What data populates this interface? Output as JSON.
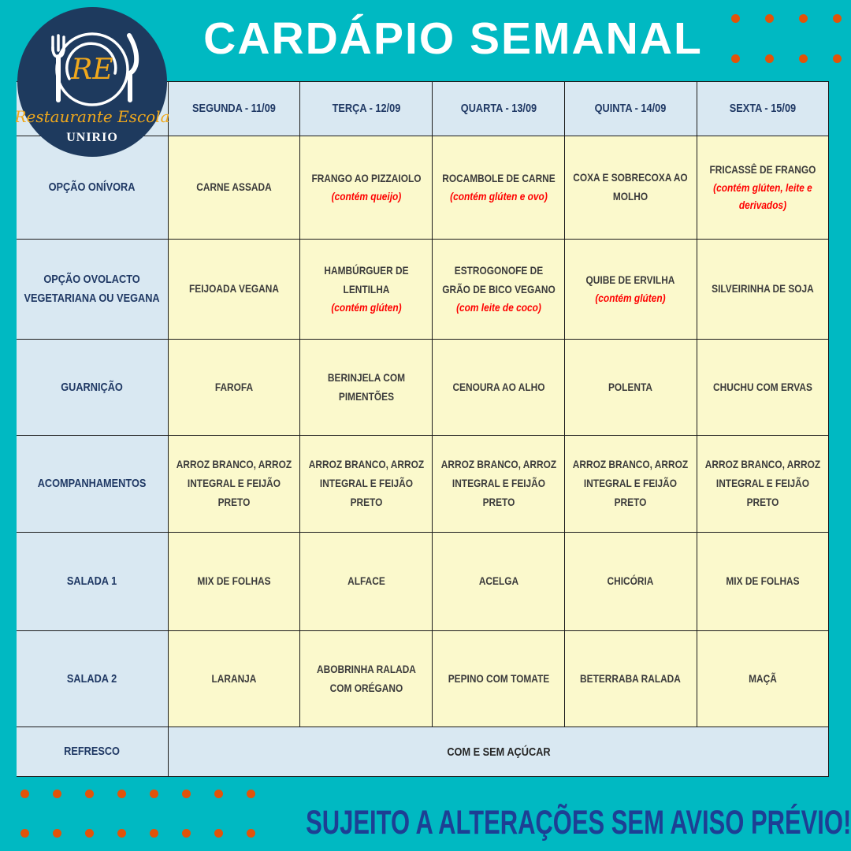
{
  "page": {
    "title": "CARDÁPIO SEMANAL",
    "footer_note": "SUJEITO A ALTERAÇÕES SEM AVISO PRÉVIO!"
  },
  "logo": {
    "initials": "RE",
    "name": "Restaurante Escola",
    "institution": "UNIRIO"
  },
  "colors": {
    "background_teal": "#00b9c2",
    "header_cell_blue": "#d9e8f2",
    "menu_cell_yellow": "#fbf9cc",
    "label_text_navy": "#1f3864",
    "cell_text": "#3b3b3b",
    "allergen_red": "#fe0000",
    "dot_orange": "#e25309",
    "footer_blue": "#1d3f94",
    "logo_circle_navy": "#1e3a5e",
    "logo_accent_gold": "#f0a81c",
    "title_white": "#ffffff"
  },
  "table": {
    "day_headers": [
      "SEGUNDA - 11/09",
      "TERÇA - 12/09",
      "QUARTA - 13/09",
      "QUINTA - 14/09",
      "SEXTA - 15/09"
    ],
    "rows": [
      {
        "label": "OPÇÃO ONÍVORA",
        "cells": [
          {
            "text": "CARNE ASSADA"
          },
          {
            "text": "FRANGO AO PIZZAIOLO",
            "note": "(contém queijo)"
          },
          {
            "text": "ROCAMBOLE DE CARNE",
            "note": "(contém glúten e ovo)"
          },
          {
            "text": "COXA  E SOBRECOXA AO MOLHO"
          },
          {
            "text": "FRICASSÊ DE FRANGO",
            "note": "(contém glúten, leite e derivados)"
          }
        ]
      },
      {
        "label": "OPÇÃO OVOLACTO VEGETARIANA OU VEGANA",
        "cells": [
          {
            "text": "FEIJOADA VEGANA"
          },
          {
            "text": "HAMBÚRGUER DE LENTILHA",
            "note": "(contém glúten)"
          },
          {
            "text": "ESTROGONOFE DE GRÃO DE BICO VEGANO",
            "note": "(com leite de coco)"
          },
          {
            "text": "QUIBE DE ERVILHA",
            "note": "(contém glúten)"
          },
          {
            "text": "SILVEIRINHA DE SOJA"
          }
        ]
      },
      {
        "label": "GUARNIÇÃO",
        "cells": [
          {
            "text": "FAROFA"
          },
          {
            "text": "BERINJELA COM PIMENTÕES"
          },
          {
            "text": "CENOURA AO ALHO"
          },
          {
            "text": "POLENTA"
          },
          {
            "text": "CHUCHU COM ERVAS"
          }
        ]
      },
      {
        "label": "ACOMPANHAMENTOS",
        "cells": [
          {
            "text": "ARROZ BRANCO, ARROZ INTEGRAL E FEIJÃO PRETO"
          },
          {
            "text": "ARROZ BRANCO, ARROZ INTEGRAL E FEIJÃO PRETO"
          },
          {
            "text": "ARROZ BRANCO, ARROZ INTEGRAL E FEIJÃO PRETO"
          },
          {
            "text": "ARROZ BRANCO, ARROZ INTEGRAL E FEIJÃO PRETO"
          },
          {
            "text": "ARROZ BRANCO, ARROZ INTEGRAL E FEIJÃO PRETO"
          }
        ]
      },
      {
        "label": "SALADA 1",
        "cells": [
          {
            "text": "MIX DE FOLHAS"
          },
          {
            "text": "ALFACE"
          },
          {
            "text": "ACELGA"
          },
          {
            "text": "CHICÓRIA"
          },
          {
            "text": "MIX DE FOLHAS"
          }
        ]
      },
      {
        "label": "SALADA 2",
        "cells": [
          {
            "text": "LARANJA"
          },
          {
            "text": "ABOBRINHA RALADA COM ORÉGANO"
          },
          {
            "text": "PEPINO COM TOMATE"
          },
          {
            "text": "BETERRABA RALADA"
          },
          {
            "text": "MAÇÃ"
          }
        ]
      },
      {
        "label": "REFRESCO",
        "merged": true,
        "cells": [
          {
            "text": "COM E SEM AÇÚCAR"
          }
        ]
      }
    ]
  }
}
